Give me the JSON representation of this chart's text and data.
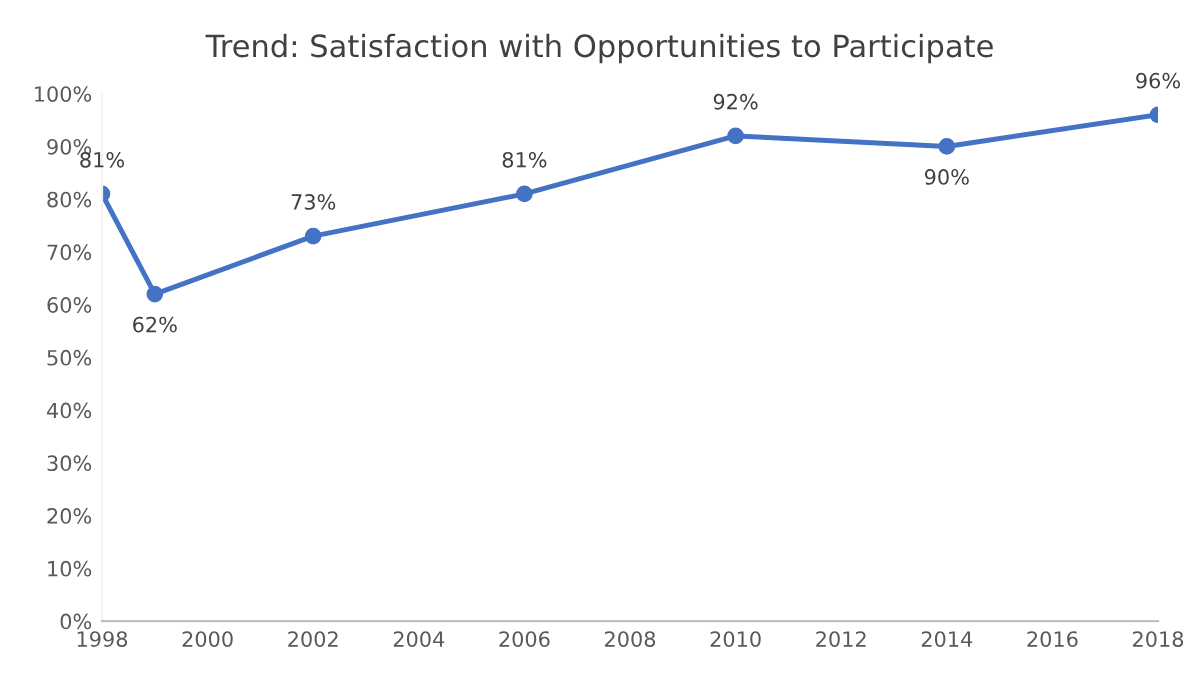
{
  "chart_data": {
    "type": "line",
    "title": "Trend: Satisfaction with Opportunities to Participate",
    "x": [
      1998,
      1999,
      2002,
      2006,
      2010,
      2014,
      2018
    ],
    "series": [
      {
        "color": "#4472c4",
        "values": [
          81,
          62,
          73,
          81,
          92,
          90,
          96
        ],
        "value_labels": [
          "81%",
          "62%",
          "73%",
          "81%",
          "92%",
          "90%",
          "96%"
        ]
      }
    ],
    "xlim": [
      1998,
      2018
    ],
    "xticks": [
      1998,
      2000,
      2002,
      2004,
      2006,
      2008,
      2010,
      2012,
      2014,
      2016,
      2018
    ],
    "ylim": [
      0,
      100
    ],
    "yticks": [
      {
        "value": 0,
        "label": "0%"
      },
      {
        "value": 10,
        "label": "10%"
      },
      {
        "value": 20,
        "label": "20%"
      },
      {
        "value": 30,
        "label": "30%"
      },
      {
        "value": 40,
        "label": "40%"
      },
      {
        "value": 50,
        "label": "50%"
      },
      {
        "value": 60,
        "label": "60%"
      },
      {
        "value": 70,
        "label": "70%"
      },
      {
        "value": 80,
        "label": "80%"
      },
      {
        "value": 90,
        "label": "90%"
      },
      {
        "value": 100,
        "label": "100%"
      }
    ],
    "grid": false,
    "legend": false,
    "marker": "circle",
    "line_style": "solid"
  }
}
